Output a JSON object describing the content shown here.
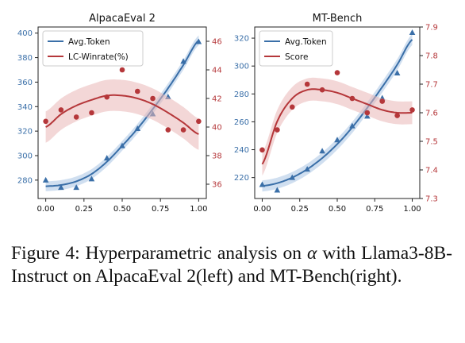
{
  "caption": {
    "label": "Figure 4:",
    "before_symbol": "Hyperparametric analysis on",
    "symbol": "α",
    "after_symbol": "with Llama3-8B-Instruct on AlpacaEval 2(left) and MT-Bench(right)."
  },
  "colors": {
    "token": "#3a6fa8",
    "score": "#b5373a",
    "token_band": "#aac4e3",
    "score_band": "#eab6b6"
  },
  "chart_data": [
    {
      "type": "line",
      "title": "AlpacaEval 2",
      "x": [
        0.0,
        0.1,
        0.2,
        0.3,
        0.4,
        0.5,
        0.6,
        0.7,
        0.8,
        0.9,
        1.0
      ],
      "xlim": [
        -0.05,
        1.05
      ],
      "xticks": [
        "0.00",
        "0.25",
        "0.50",
        "0.75",
        "1.00"
      ],
      "xtick_values": [
        0.0,
        0.25,
        0.5,
        0.75,
        1.0
      ],
      "ylim_left": [
        265,
        405
      ],
      "yticks_left": [
        280,
        300,
        320,
        340,
        360,
        380,
        400
      ],
      "ylim_right": [
        35,
        47
      ],
      "yticks_right": [
        36,
        38,
        40,
        42,
        44,
        46
      ],
      "series": [
        {
          "name": "Avg.Token",
          "axis": "left",
          "marker": "triangle",
          "points": [
            280,
            274,
            274,
            281,
            298,
            308,
            322,
            334,
            348,
            377,
            393
          ],
          "fit": [
            275,
            276,
            279,
            285,
            295,
            308,
            322,
            338,
            355,
            374,
            394
          ],
          "band": 4
        },
        {
          "name": "LC-Winrate(%)",
          "axis": "right",
          "marker": "circle",
          "points": [
            40.4,
            41.2,
            40.7,
            41.0,
            42.1,
            44.0,
            42.5,
            42.0,
            39.8,
            39.8,
            40.4
          ],
          "fit": [
            40.0,
            40.9,
            41.5,
            41.9,
            42.2,
            42.2,
            42.0,
            41.6,
            41.0,
            40.3,
            39.5
          ],
          "band": 1.1
        }
      ],
      "legend": "top-left"
    },
    {
      "type": "line",
      "title": "MT-Bench",
      "x": [
        0.0,
        0.1,
        0.2,
        0.3,
        0.4,
        0.5,
        0.6,
        0.7,
        0.8,
        0.9,
        1.0
      ],
      "xlim": [
        -0.05,
        1.05
      ],
      "xticks": [
        "0.00",
        "0.25",
        "0.50",
        "0.75",
        "1.00"
      ],
      "xtick_values": [
        0.0,
        0.25,
        0.5,
        0.75,
        1.0
      ],
      "ylim_left": [
        205,
        328
      ],
      "yticks_left": [
        220,
        240,
        260,
        280,
        300,
        320
      ],
      "ylim_right": [
        7.3,
        7.9
      ],
      "yticks_right": [
        7.3,
        7.4,
        7.5,
        7.6,
        7.7,
        7.8,
        7.9
      ],
      "series": [
        {
          "name": "Avg.Token",
          "axis": "left",
          "marker": "triangle",
          "points": [
            215,
            211,
            220,
            226,
            239,
            247,
            257,
            264,
            277,
            295,
            324
          ],
          "fit": [
            214,
            216,
            220,
            226,
            234,
            244,
            256,
            270,
            285,
            301,
            319
          ],
          "band": 4
        },
        {
          "name": "Score",
          "axis": "right",
          "marker": "circle",
          "points": [
            7.47,
            7.54,
            7.62,
            7.7,
            7.68,
            7.74,
            7.65,
            7.6,
            7.64,
            7.59,
            7.61
          ],
          "fit": [
            7.42,
            7.57,
            7.65,
            7.68,
            7.68,
            7.67,
            7.65,
            7.63,
            7.61,
            7.6,
            7.6
          ],
          "band": 0.04
        }
      ],
      "legend": "top-left"
    }
  ]
}
